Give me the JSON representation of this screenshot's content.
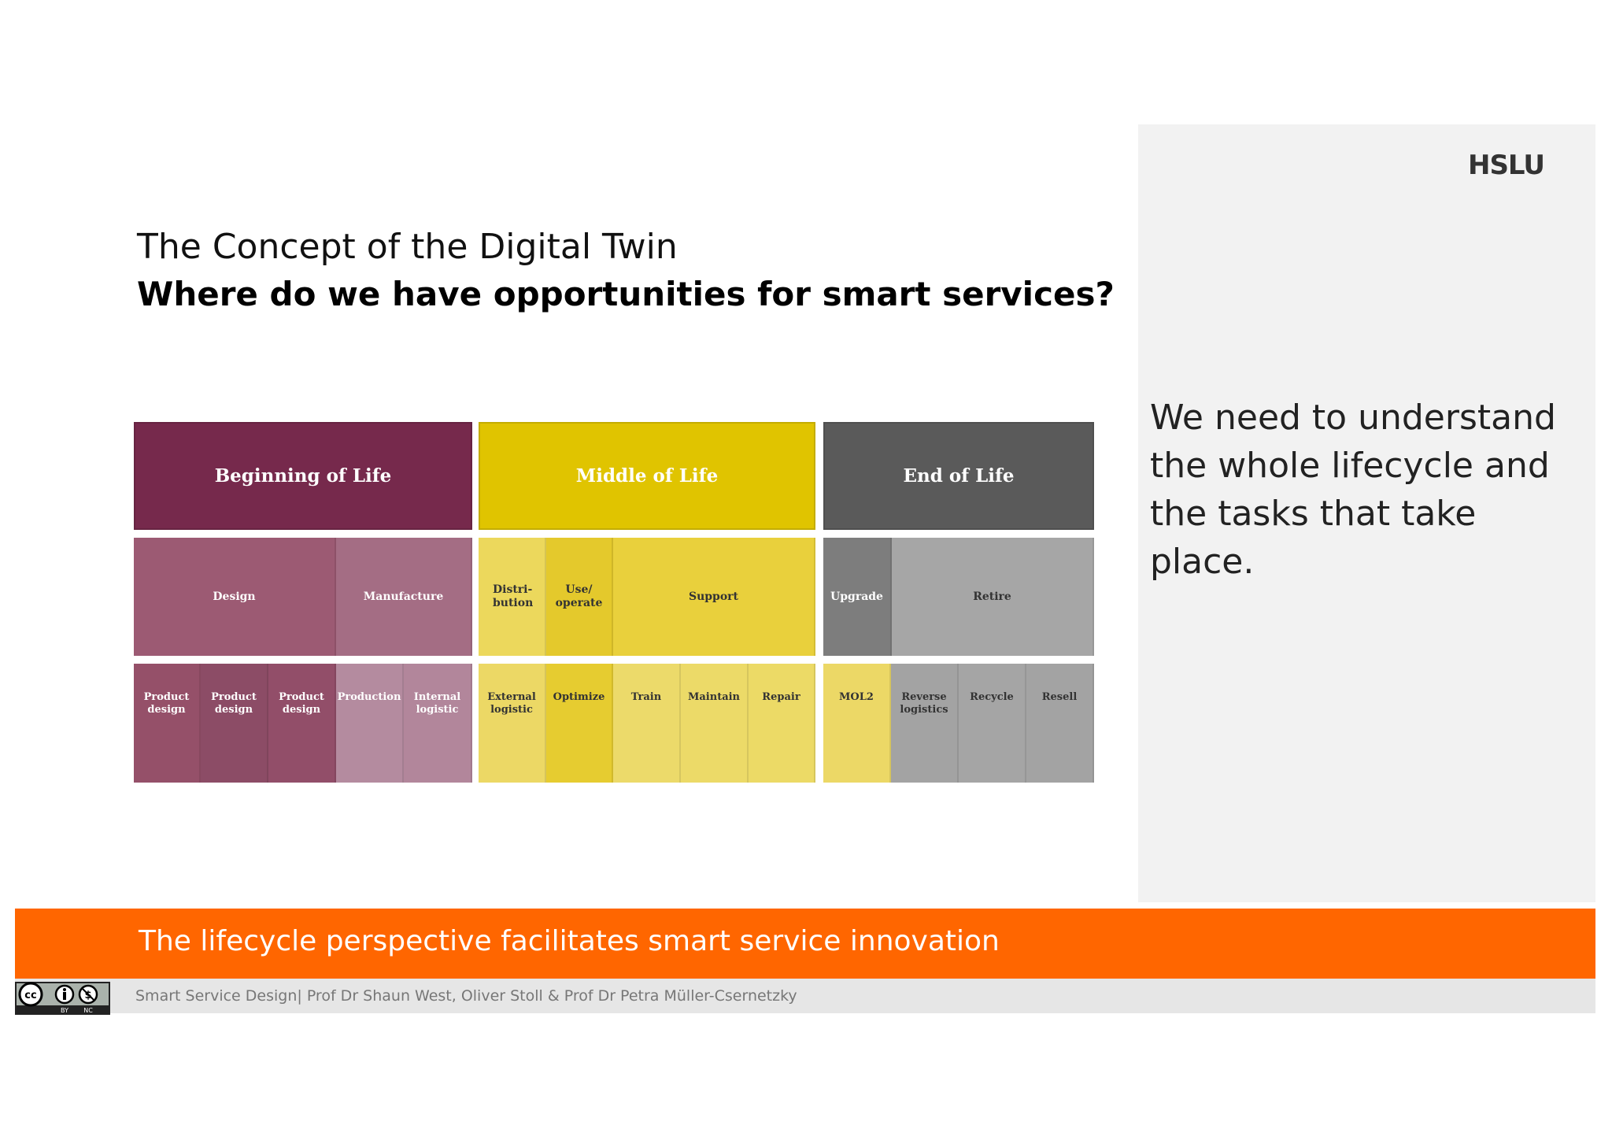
{
  "header": {
    "logo": "HSLU",
    "title": "The Concept of the Digital Twin",
    "subtitle": "Where do we have opportunities for smart services?"
  },
  "side_note": {
    "text": "We need to understand the whole lifecycle and the tasks that take place."
  },
  "lifecycle": {
    "phases": {
      "beginning": "Beginning of Life",
      "middle": "Middle of Life",
      "end": "End of Life"
    },
    "stages": {
      "design": "Design",
      "manufacture": "Manufacture",
      "distribution": "Distri-\nbution",
      "use_operate": "Use/\noperate",
      "support": "Support",
      "upgrade": "Upgrade",
      "retire": "Retire"
    },
    "tasks": {
      "product_design_1": "Product\ndesign",
      "product_design_2": "Product\ndesign",
      "product_design_3": "Product\ndesign",
      "production": "Production",
      "internal_logistic": "Internal\nlogistic",
      "external_logistic": "External\nlogistic",
      "optimize": "Optimize",
      "train": "Train",
      "maintain": "Maintain",
      "repair": "Repair",
      "mol2": "MOL2",
      "reverse_logistics": "Reverse\nlogistics",
      "recycle": "Recycle",
      "resell": "Resell"
    },
    "colors": {
      "beginning_phase": "#76294c",
      "beginning_stage": "#9c5a73",
      "middle_phase": "#e0c400",
      "middle_stage": "#e9d03c",
      "end_phase": "#5a5a5a",
      "end_stage": "#a6a6a6"
    }
  },
  "banner": {
    "text": "The lifecycle perspective facilitates smart service innovation",
    "color": "#ff6600"
  },
  "footer": {
    "text": "Smart Service Design| Prof Dr Shaun West, Oliver Stoll & Prof Dr Petra Müller-Csernetzky",
    "license_badge": "cc-by-nc-icon"
  }
}
